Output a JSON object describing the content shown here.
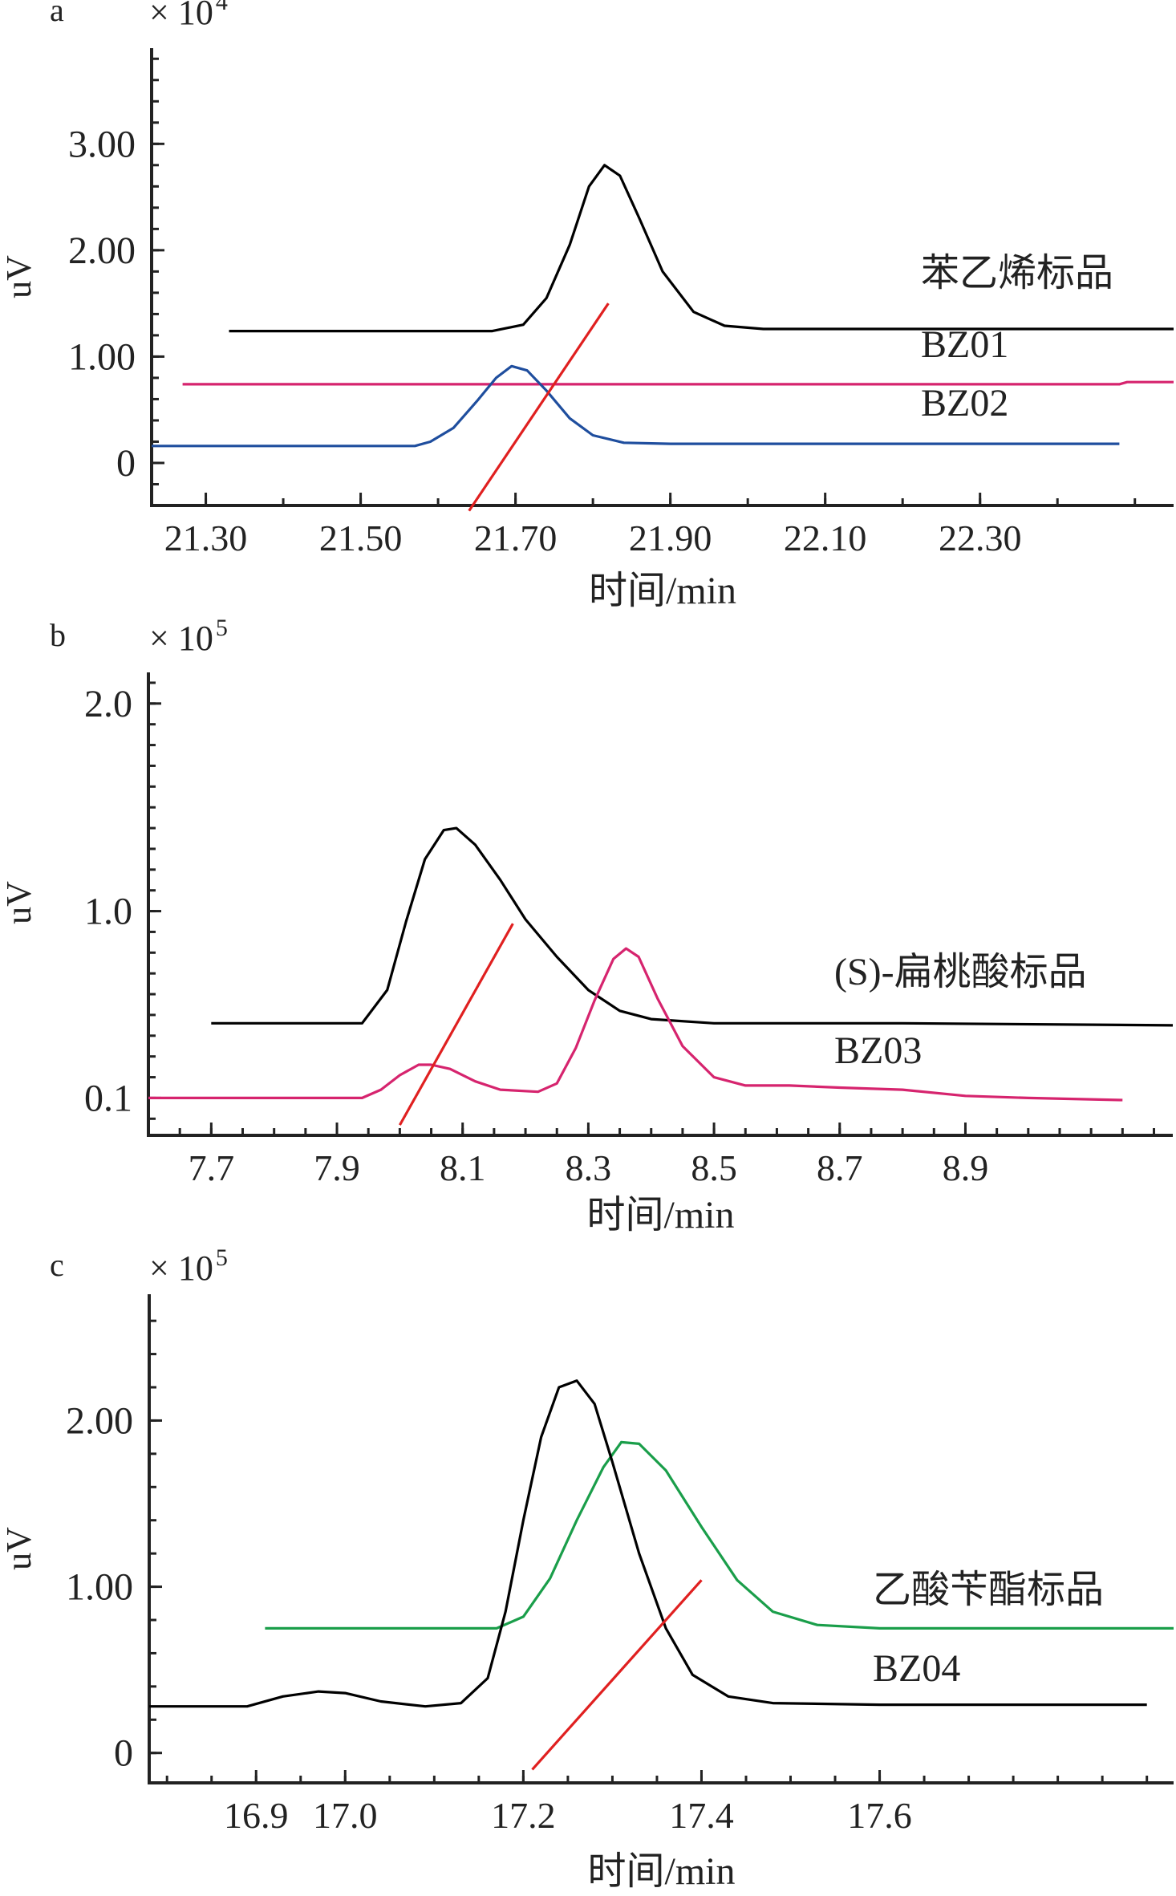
{
  "chart_data": [
    {
      "panel": "a",
      "type": "line",
      "multiplier": "× 10",
      "exponent": "4",
      "ylabel": "uV",
      "xlabel": "时间/min",
      "xticks": [
        "21.30",
        "21.50",
        "21.70",
        "21.90",
        "22.10",
        "22.30"
      ],
      "yticks": [
        "0",
        "1.00",
        "2.00",
        "3.00"
      ],
      "xlim": [
        21.23,
        22.55
      ],
      "ylim": [
        -0.4,
        3.9
      ],
      "series": [
        {
          "name": "苯乙烯标品",
          "color": "#000000",
          "points": [
            [
              21.33,
              1.24
            ],
            [
              21.67,
              1.24
            ],
            [
              21.71,
              1.3
            ],
            [
              21.74,
              1.55
            ],
            [
              21.77,
              2.05
            ],
            [
              21.795,
              2.6
            ],
            [
              21.815,
              2.8
            ],
            [
              21.835,
              2.7
            ],
            [
              21.86,
              2.3
            ],
            [
              21.89,
              1.8
            ],
            [
              21.93,
              1.42
            ],
            [
              21.97,
              1.29
            ],
            [
              22.02,
              1.26
            ],
            [
              22.3,
              1.26
            ],
            [
              22.55,
              1.26
            ]
          ]
        },
        {
          "name": "BZ01",
          "color": "#d6246e",
          "points": [
            [
              21.27,
              0.74
            ],
            [
              22.48,
              0.74
            ],
            [
              22.49,
              0.76
            ],
            [
              22.55,
              0.76
            ]
          ]
        },
        {
          "name": "BZ02",
          "color": "#1f4e9e",
          "points": [
            [
              21.23,
              0.16
            ],
            [
              21.57,
              0.16
            ],
            [
              21.59,
              0.2
            ],
            [
              21.62,
              0.33
            ],
            [
              21.65,
              0.58
            ],
            [
              21.675,
              0.8
            ],
            [
              21.695,
              0.91
            ],
            [
              21.715,
              0.87
            ],
            [
              21.74,
              0.68
            ],
            [
              21.77,
              0.42
            ],
            [
              21.8,
              0.26
            ],
            [
              21.84,
              0.19
            ],
            [
              21.9,
              0.18
            ],
            [
              22.1,
              0.18
            ],
            [
              22.3,
              0.18
            ],
            [
              22.48,
              0.18
            ]
          ]
        },
        {
          "color": "#e02020",
          "points": [
            [
              21.64,
              -0.45
            ],
            [
              21.82,
              1.5
            ]
          ]
        }
      ]
    },
    {
      "panel": "b",
      "type": "line",
      "multiplier": "× 10",
      "exponent": "5",
      "ylabel": "uV",
      "xlabel": "时间/min",
      "xticks": [
        "7.7",
        "7.9",
        "8.1",
        "8.3",
        "8.5",
        "8.7",
        "8.9"
      ],
      "yticks": [
        "0.1",
        "1.0",
        "2.0"
      ],
      "xlim": [
        7.6,
        9.23
      ],
      "ylim": [
        -0.08,
        2.15
      ],
      "series": [
        {
          "name": "(S)-扁桃酸标品",
          "color": "#000000",
          "points": [
            [
              7.7,
              0.46
            ],
            [
              7.94,
              0.46
            ],
            [
              7.98,
              0.62
            ],
            [
              8.01,
              0.95
            ],
            [
              8.04,
              1.25
            ],
            [
              8.07,
              1.39
            ],
            [
              8.09,
              1.4
            ],
            [
              8.12,
              1.32
            ],
            [
              8.16,
              1.15
            ],
            [
              8.2,
              0.96
            ],
            [
              8.25,
              0.78
            ],
            [
              8.3,
              0.62
            ],
            [
              8.35,
              0.52
            ],
            [
              8.4,
              0.48
            ],
            [
              8.5,
              0.46
            ],
            [
              8.8,
              0.46
            ],
            [
              9.23,
              0.45
            ]
          ]
        },
        {
          "name": "BZ03",
          "color": "#d6246e",
          "points": [
            [
              7.6,
              0.1
            ],
            [
              7.94,
              0.1
            ],
            [
              7.97,
              0.14
            ],
            [
              8.0,
              0.21
            ],
            [
              8.03,
              0.26
            ],
            [
              8.05,
              0.26
            ],
            [
              8.08,
              0.24
            ],
            [
              8.12,
              0.18
            ],
            [
              8.16,
              0.14
            ],
            [
              8.22,
              0.13
            ],
            [
              8.25,
              0.17
            ],
            [
              8.28,
              0.34
            ],
            [
              8.31,
              0.57
            ],
            [
              8.34,
              0.77
            ],
            [
              8.36,
              0.82
            ],
            [
              8.38,
              0.78
            ],
            [
              8.41,
              0.58
            ],
            [
              8.45,
              0.35
            ],
            [
              8.5,
              0.2
            ],
            [
              8.55,
              0.16
            ],
            [
              8.62,
              0.16
            ],
            [
              8.7,
              0.15
            ],
            [
              8.8,
              0.14
            ],
            [
              8.9,
              0.11
            ],
            [
              9.0,
              0.1
            ],
            [
              9.15,
              0.09
            ]
          ]
        },
        {
          "color": "#e02020",
          "points": [
            [
              8.0,
              -0.03
            ],
            [
              8.18,
              0.94
            ]
          ]
        }
      ]
    },
    {
      "panel": "c",
      "type": "line",
      "multiplier": "× 10",
      "exponent": "5",
      "ylabel": "uV",
      "xlabel": "时间/min",
      "xticks": [
        "16.9",
        "17.0",
        "17.2",
        "17.4",
        "17.6"
      ],
      "yticks": [
        "0",
        "1.00",
        "2.00"
      ],
      "xlim": [
        16.78,
        17.93
      ],
      "ylim": [
        -0.18,
        2.76
      ],
      "series": [
        {
          "name": "乙酸苄酯标品",
          "color": "#1a9e4a",
          "points": [
            [
              16.91,
              0.75
            ],
            [
              17.17,
              0.75
            ],
            [
              17.2,
              0.82
            ],
            [
              17.23,
              1.05
            ],
            [
              17.26,
              1.4
            ],
            [
              17.29,
              1.72
            ],
            [
              17.31,
              1.87
            ],
            [
              17.33,
              1.86
            ],
            [
              17.36,
              1.7
            ],
            [
              17.4,
              1.36
            ],
            [
              17.44,
              1.04
            ],
            [
              17.48,
              0.85
            ],
            [
              17.53,
              0.77
            ],
            [
              17.6,
              0.75
            ],
            [
              17.93,
              0.75
            ]
          ]
        },
        {
          "name": "BZ04",
          "color": "#000000",
          "points": [
            [
              16.78,
              0.28
            ],
            [
              16.89,
              0.28
            ],
            [
              16.93,
              0.34
            ],
            [
              16.97,
              0.37
            ],
            [
              17.0,
              0.36
            ],
            [
              17.04,
              0.31
            ],
            [
              17.09,
              0.28
            ],
            [
              17.13,
              0.3
            ],
            [
              17.16,
              0.45
            ],
            [
              17.18,
              0.85
            ],
            [
              17.2,
              1.4
            ],
            [
              17.22,
              1.9
            ],
            [
              17.24,
              2.2
            ],
            [
              17.26,
              2.24
            ],
            [
              17.28,
              2.1
            ],
            [
              17.3,
              1.75
            ],
            [
              17.33,
              1.2
            ],
            [
              17.36,
              0.75
            ],
            [
              17.39,
              0.47
            ],
            [
              17.43,
              0.34
            ],
            [
              17.48,
              0.3
            ],
            [
              17.6,
              0.29
            ],
            [
              17.9,
              0.29
            ]
          ]
        },
        {
          "color": "#e02020",
          "points": [
            [
              17.21,
              -0.1
            ],
            [
              17.4,
              1.04
            ]
          ]
        }
      ]
    }
  ]
}
